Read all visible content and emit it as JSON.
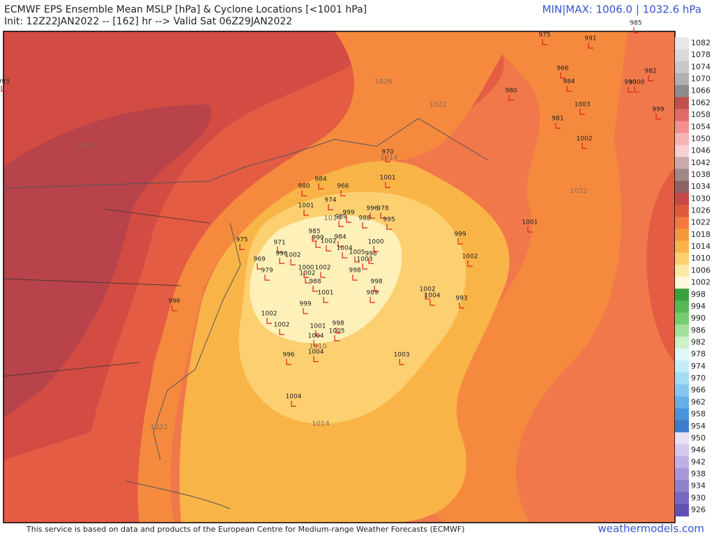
{
  "header": {
    "title": "ECMWF EPS Ensemble Mean MSLP [hPa] & Cyclone Locations [<1001 hPa]",
    "subtitle": "Init: 12Z22JAN2022 -- [162] hr --> Valid Sat 06Z29JAN2022",
    "minmax": "MIN|MAX: 1006.0 | 1032.6 hPa"
  },
  "footer": {
    "credit": "This service is based on data and products of the European Centre for Medium-range Weather Forecasts (ECMWF)",
    "site": "weathermodels.com"
  },
  "colorbar": {
    "labels": [
      1082,
      1078,
      1074,
      1070,
      1066,
      1062,
      1058,
      1054,
      1050,
      1046,
      1042,
      1038,
      1034,
      1030,
      1026,
      1022,
      1018,
      1014,
      1010,
      1006,
      1002,
      998,
      994,
      990,
      986,
      982,
      978,
      974,
      970,
      966,
      962,
      958,
      954,
      950,
      946,
      942,
      938,
      934,
      930,
      926
    ],
    "colors": [
      "#e8e8e8",
      "#d9d9d9",
      "#c8c8c8",
      "#b0b0b0",
      "#8c8c8c",
      "#c05050",
      "#e06a6a",
      "#f09090",
      "#f5b5b5",
      "#f8d0d0",
      "#c8aaaa",
      "#a08888",
      "#8c6464",
      "#c84848",
      "#e05a40",
      "#f27a40",
      "#f5983d",
      "#f9b448",
      "#fcd070",
      "#fde9a6",
      "#fef8d8",
      "#3aa040",
      "#56b85a",
      "#78cc70",
      "#a4e09c",
      "#ccf0c8",
      "#e0f7fa",
      "#c4ecf8",
      "#a4dcf4",
      "#84c8f0",
      "#64b0e8",
      "#4894dc",
      "#3c7ccc",
      "#e8e0f4",
      "#d4c8ec",
      "#c0b0e4",
      "#a898d8",
      "#9080cc",
      "#7868c0",
      "#6050b4"
    ]
  },
  "contour_labels": [
    1026,
    1022,
    1030,
    1022,
    1014,
    1010,
    1014,
    1022,
    1014
  ],
  "cyclones": [
    985,
    975,
    991,
    966,
    984,
    982,
    990,
    1000,
    980,
    1003,
    999,
    981,
    1002,
    993,
    1001,
    999,
    1002,
    993,
    1002,
    1004,
    1003,
    1004,
    996,
    1004,
    1002,
    1002,
    1001,
    998,
    1004,
    1005,
    999,
    1001,
    989,
    998,
    988,
    1002,
    1000,
    1002,
    998,
    979,
    969,
    971,
    996,
    1002,
    985,
    999,
    1002,
    984,
    1004,
    1005,
    998,
    1003,
    1000,
    988,
    989,
    999,
    996,
    978,
    995,
    974,
    966,
    1001,
    980,
    984,
    1001,
    975,
    996,
    970
  ]
}
